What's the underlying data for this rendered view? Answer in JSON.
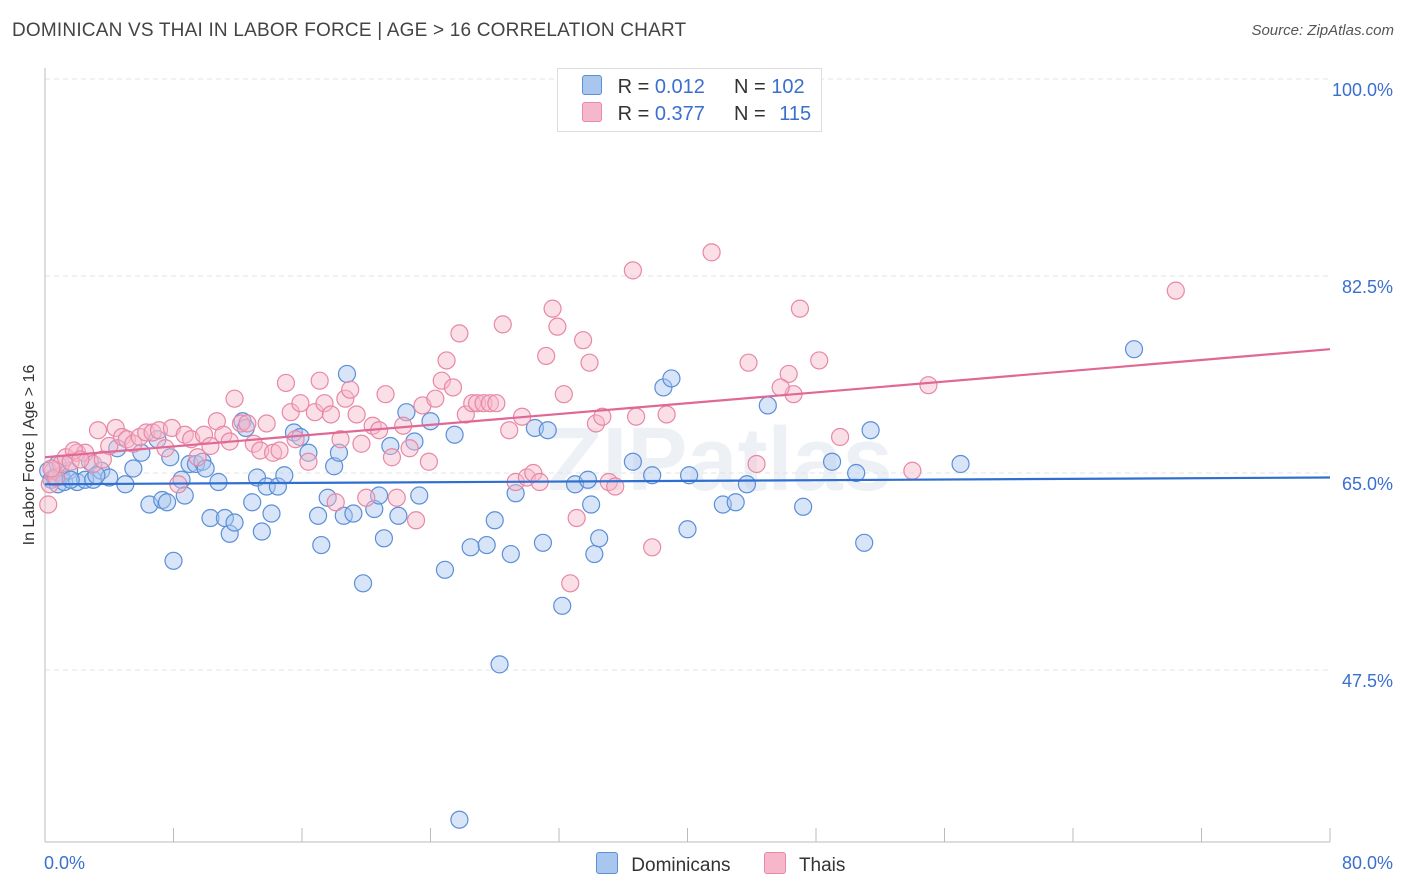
{
  "title": "DOMINICAN VS THAI IN LABOR FORCE | AGE > 16 CORRELATION CHART",
  "source": "Source: ZipAtlas.com",
  "watermark": "ZIPatlas",
  "legend": {
    "rows": [
      {
        "r_label": "R =",
        "r_value": "0.012",
        "n_label": "N =",
        "n_value": "102"
      },
      {
        "r_label": "R =",
        "r_value": "0.377",
        "n_label": "N =",
        "n_value": "115"
      }
    ]
  },
  "bottom_legend": [
    "Dominicans",
    "Thais"
  ],
  "colors": {
    "dominicans_fill": "#a9c6ef",
    "dominicans_stroke": "#5b8fd6",
    "dominicans_line": "#2f6fd0",
    "thais_fill": "#f6b7ca",
    "thais_stroke": "#e887a6",
    "thais_line": "#e06896",
    "tick_label": "#3a6fd0",
    "grid": "#e3e3e3"
  },
  "chart_data": {
    "type": "scatter",
    "title": "DOMINICAN VS THAI IN LABOR FORCE | AGE > 16 CORRELATION CHART",
    "xlabel": "",
    "ylabel": "In Labor Force | Age > 16",
    "xlim": [
      0,
      80
    ],
    "ylim": [
      30,
      100
    ],
    "x_tick_labels": [
      "0.0%",
      "80.0%"
    ],
    "y_ticks": [
      47.5,
      65.0,
      82.5,
      100.0
    ],
    "y_tick_labels": [
      "47.5%",
      "65.0%",
      "82.5%",
      "100.0%"
    ],
    "grid": true,
    "legend_position": "top-center",
    "series": [
      {
        "name": "Dominicans",
        "r": 0.012,
        "n": 102,
        "trend": {
          "x": [
            0,
            80
          ],
          "y": [
            64.0,
            64.6
          ]
        },
        "points": [
          [
            0.2,
            65.2
          ],
          [
            0.4,
            64.4
          ],
          [
            0.6,
            64.6
          ],
          [
            0.8,
            64.0
          ],
          [
            1.0,
            64.8
          ],
          [
            1.2,
            64.2
          ],
          [
            1.5,
            65.2
          ],
          [
            2.0,
            64.2
          ],
          [
            2.5,
            64.4
          ],
          [
            2.8,
            66.0
          ],
          [
            3.0,
            64.4
          ],
          [
            3.5,
            65.2
          ],
          [
            4.0,
            64.6
          ],
          [
            4.5,
            67.2
          ],
          [
            5.0,
            64.0
          ],
          [
            5.5,
            65.4
          ],
          [
            6.0,
            66.8
          ],
          [
            6.5,
            62.2
          ],
          [
            7.0,
            68.0
          ],
          [
            7.3,
            62.6
          ],
          [
            7.6,
            62.4
          ],
          [
            7.8,
            66.4
          ],
          [
            8.0,
            57.2
          ],
          [
            8.5,
            64.4
          ],
          [
            8.7,
            63.0
          ],
          [
            9.0,
            65.8
          ],
          [
            9.4,
            65.8
          ],
          [
            9.8,
            66.0
          ],
          [
            10.0,
            65.4
          ],
          [
            10.3,
            61.0
          ],
          [
            10.8,
            64.2
          ],
          [
            11.2,
            61.0
          ],
          [
            11.5,
            59.6
          ],
          [
            11.8,
            60.6
          ],
          [
            12.3,
            69.6
          ],
          [
            12.5,
            69.0
          ],
          [
            12.9,
            62.4
          ],
          [
            13.2,
            64.6
          ],
          [
            13.5,
            59.8
          ],
          [
            13.8,
            63.8
          ],
          [
            14.1,
            61.4
          ],
          [
            14.5,
            63.8
          ],
          [
            14.9,
            64.8
          ],
          [
            15.5,
            68.6
          ],
          [
            15.9,
            68.2
          ],
          [
            16.4,
            66.8
          ],
          [
            17.0,
            61.2
          ],
          [
            17.2,
            58.6
          ],
          [
            17.6,
            62.8
          ],
          [
            18.0,
            65.6
          ],
          [
            18.3,
            66.8
          ],
          [
            18.6,
            61.2
          ],
          [
            18.8,
            73.8
          ],
          [
            19.2,
            61.4
          ],
          [
            19.8,
            55.2
          ],
          [
            20.5,
            61.8
          ],
          [
            20.8,
            63.0
          ],
          [
            21.1,
            59.2
          ],
          [
            21.5,
            67.4
          ],
          [
            22.0,
            61.2
          ],
          [
            22.5,
            70.4
          ],
          [
            23.0,
            67.8
          ],
          [
            23.3,
            63.0
          ],
          [
            24.0,
            69.6
          ],
          [
            24.9,
            56.4
          ],
          [
            25.5,
            68.4
          ],
          [
            25.8,
            34.2
          ],
          [
            26.5,
            58.4
          ],
          [
            27.5,
            58.6
          ],
          [
            28.0,
            60.8
          ],
          [
            28.3,
            48.0
          ],
          [
            29.0,
            57.8
          ],
          [
            29.3,
            63.2
          ],
          [
            30.5,
            69.0
          ],
          [
            31.0,
            58.8
          ],
          [
            31.3,
            68.8
          ],
          [
            32.2,
            53.2
          ],
          [
            33.0,
            64.0
          ],
          [
            33.8,
            64.4
          ],
          [
            34.0,
            62.2
          ],
          [
            34.2,
            57.8
          ],
          [
            34.5,
            59.2
          ],
          [
            36.6,
            66.0
          ],
          [
            37.8,
            64.8
          ],
          [
            38.5,
            72.6
          ],
          [
            39.0,
            73.4
          ],
          [
            40.0,
            60.0
          ],
          [
            40.1,
            64.8
          ],
          [
            42.2,
            62.2
          ],
          [
            43.0,
            62.4
          ],
          [
            43.7,
            64.0
          ],
          [
            45.0,
            71.0
          ],
          [
            47.2,
            62.0
          ],
          [
            49.0,
            66.0
          ],
          [
            50.5,
            65.0
          ],
          [
            51.0,
            58.8
          ],
          [
            51.4,
            68.8
          ],
          [
            57.0,
            65.8
          ],
          [
            67.8,
            76.0
          ],
          [
            0.8,
            65.8
          ],
          [
            1.6,
            64.4
          ],
          [
            3.2,
            64.8
          ]
        ]
      },
      {
        "name": "Thais",
        "r": 0.377,
        "n": 115,
        "trend": {
          "x": [
            0,
            80
          ],
          "y": [
            66.4,
            76.0
          ]
        },
        "points": [
          [
            0.2,
            62.2
          ],
          [
            0.3,
            64.0
          ],
          [
            0.5,
            65.2
          ],
          [
            0.7,
            64.6
          ],
          [
            1.0,
            65.8
          ],
          [
            1.3,
            66.4
          ],
          [
            1.6,
            66.0
          ],
          [
            2.0,
            66.8
          ],
          [
            2.5,
            66.8
          ],
          [
            3.0,
            65.8
          ],
          [
            3.3,
            68.8
          ],
          [
            3.6,
            66.2
          ],
          [
            4.0,
            67.4
          ],
          [
            4.4,
            69.0
          ],
          [
            4.8,
            68.2
          ],
          [
            5.1,
            68.0
          ],
          [
            5.5,
            67.6
          ],
          [
            5.9,
            68.2
          ],
          [
            6.3,
            68.6
          ],
          [
            6.7,
            68.6
          ],
          [
            7.1,
            68.8
          ],
          [
            7.5,
            67.2
          ],
          [
            7.9,
            69.0
          ],
          [
            8.3,
            64.0
          ],
          [
            8.7,
            68.4
          ],
          [
            9.1,
            68.0
          ],
          [
            9.5,
            66.4
          ],
          [
            9.9,
            68.4
          ],
          [
            10.3,
            67.4
          ],
          [
            10.7,
            69.6
          ],
          [
            11.1,
            68.4
          ],
          [
            11.5,
            67.8
          ],
          [
            11.8,
            71.6
          ],
          [
            12.2,
            69.4
          ],
          [
            12.6,
            69.4
          ],
          [
            13.0,
            67.6
          ],
          [
            13.4,
            67.0
          ],
          [
            13.8,
            69.4
          ],
          [
            14.2,
            66.8
          ],
          [
            14.6,
            67.0
          ],
          [
            15.0,
            73.0
          ],
          [
            15.3,
            70.4
          ],
          [
            15.6,
            68.0
          ],
          [
            15.9,
            71.2
          ],
          [
            16.4,
            66.0
          ],
          [
            16.8,
            70.4
          ],
          [
            17.1,
            73.2
          ],
          [
            17.4,
            71.2
          ],
          [
            17.8,
            70.2
          ],
          [
            18.1,
            62.4
          ],
          [
            18.4,
            68.0
          ],
          [
            18.7,
            71.6
          ],
          [
            19.0,
            72.4
          ],
          [
            19.4,
            70.2
          ],
          [
            19.7,
            67.6
          ],
          [
            20.0,
            62.8
          ],
          [
            20.4,
            69.2
          ],
          [
            20.8,
            68.8
          ],
          [
            21.2,
            72.0
          ],
          [
            21.6,
            66.4
          ],
          [
            21.9,
            62.8
          ],
          [
            22.3,
            69.2
          ],
          [
            22.7,
            67.2
          ],
          [
            23.1,
            60.8
          ],
          [
            23.5,
            71.0
          ],
          [
            23.9,
            66.0
          ],
          [
            24.3,
            71.6
          ],
          [
            24.7,
            73.2
          ],
          [
            25.0,
            75.0
          ],
          [
            25.4,
            72.6
          ],
          [
            25.8,
            77.4
          ],
          [
            26.2,
            70.2
          ],
          [
            26.6,
            71.2
          ],
          [
            26.9,
            71.2
          ],
          [
            27.3,
            71.2
          ],
          [
            27.7,
            71.2
          ],
          [
            28.1,
            71.2
          ],
          [
            28.5,
            78.2
          ],
          [
            28.9,
            68.8
          ],
          [
            29.3,
            64.2
          ],
          [
            29.7,
            70.0
          ],
          [
            30.0,
            64.6
          ],
          [
            30.4,
            65.0
          ],
          [
            30.8,
            64.2
          ],
          [
            31.2,
            75.4
          ],
          [
            31.6,
            79.6
          ],
          [
            31.9,
            78.0
          ],
          [
            32.3,
            72.0
          ],
          [
            32.7,
            55.2
          ],
          [
            33.1,
            61.0
          ],
          [
            33.5,
            76.8
          ],
          [
            33.9,
            74.8
          ],
          [
            34.3,
            69.4
          ],
          [
            34.7,
            70.0
          ],
          [
            35.1,
            64.2
          ],
          [
            35.5,
            63.8
          ],
          [
            36.6,
            83.0
          ],
          [
            37.8,
            58.4
          ],
          [
            38.7,
            70.2
          ],
          [
            41.5,
            84.6
          ],
          [
            43.8,
            74.8
          ],
          [
            44.3,
            65.8
          ],
          [
            46.3,
            73.8
          ],
          [
            46.6,
            72.0
          ],
          [
            47.0,
            79.6
          ],
          [
            48.2,
            75.0
          ],
          [
            49.5,
            68.2
          ],
          [
            54.0,
            65.2
          ],
          [
            55.0,
            72.8
          ],
          [
            70.4,
            81.2
          ],
          [
            0.4,
            65.4
          ],
          [
            1.8,
            67.0
          ],
          [
            2.2,
            66.2
          ],
          [
            36.8,
            70.0
          ],
          [
            45.8,
            72.6
          ]
        ]
      }
    ]
  }
}
